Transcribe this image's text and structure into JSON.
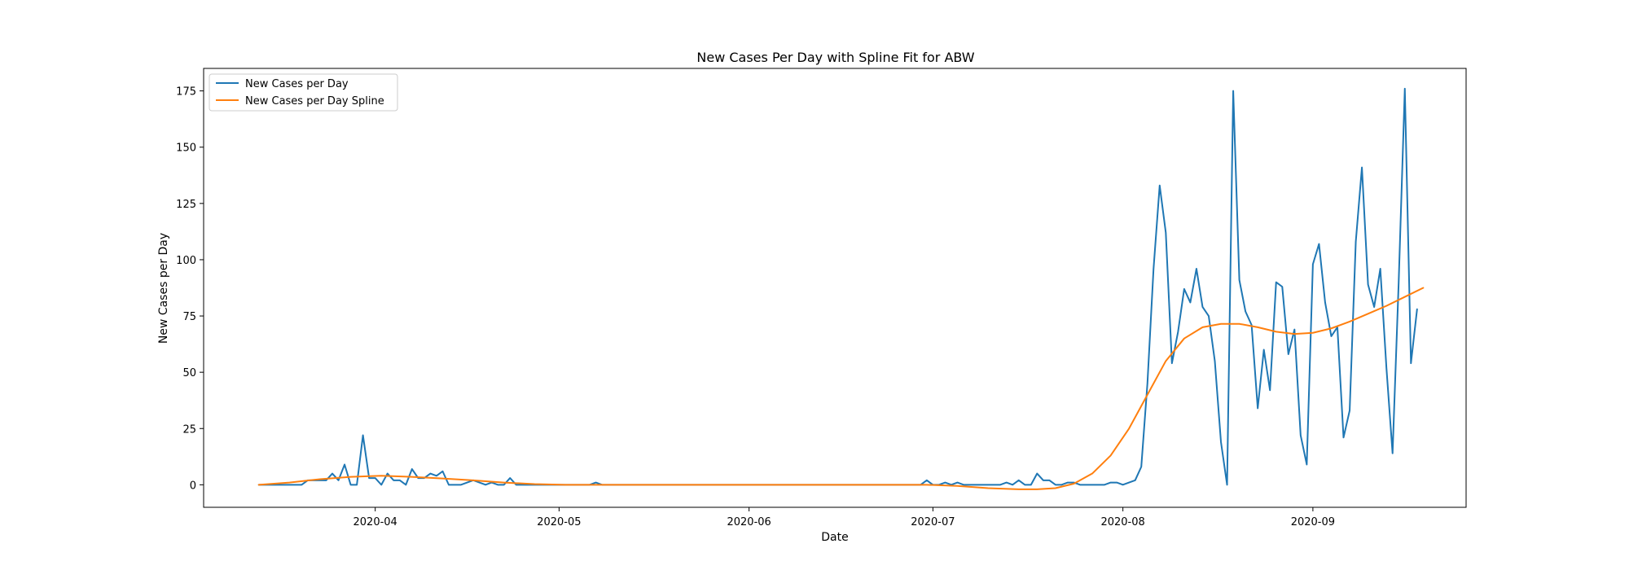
{
  "chart_data": {
    "type": "line",
    "title": "New Cases Per Day with Spline Fit for ABW",
    "xlabel": "Date",
    "ylabel": "New Cases per Day",
    "x_start": "2020-03-13",
    "x_end": "2020-09-19",
    "xlim": [
      "2020-03-04",
      "2020-09-26"
    ],
    "ylim": [
      -10,
      185
    ],
    "x_ticks": [
      {
        "date": "2020-04-01",
        "label": "2020-04"
      },
      {
        "date": "2020-05-01",
        "label": "2020-05"
      },
      {
        "date": "2020-06-01",
        "label": "2020-06"
      },
      {
        "date": "2020-07-01",
        "label": "2020-07"
      },
      {
        "date": "2020-08-01",
        "label": "2020-08"
      },
      {
        "date": "2020-09-01",
        "label": "2020-09"
      }
    ],
    "y_ticks": [
      0,
      25,
      50,
      75,
      100,
      125,
      150,
      175
    ],
    "grid": false,
    "legend_position": "top-left",
    "series": [
      {
        "name": "New Cases per Day",
        "color": "#1f77b4",
        "points": [
          [
            "2020-03-13",
            0
          ],
          [
            "2020-03-14",
            0
          ],
          [
            "2020-03-15",
            0
          ],
          [
            "2020-03-16",
            0
          ],
          [
            "2020-03-17",
            0
          ],
          [
            "2020-03-18",
            0
          ],
          [
            "2020-03-19",
            0
          ],
          [
            "2020-03-20",
            0
          ],
          [
            "2020-03-21",
            2
          ],
          [
            "2020-03-22",
            2
          ],
          [
            "2020-03-23",
            2
          ],
          [
            "2020-03-24",
            2
          ],
          [
            "2020-03-25",
            5
          ],
          [
            "2020-03-26",
            2
          ],
          [
            "2020-03-27",
            9
          ],
          [
            "2020-03-28",
            0
          ],
          [
            "2020-03-29",
            0
          ],
          [
            "2020-03-30",
            22
          ],
          [
            "2020-03-31",
            3
          ],
          [
            "2020-04-01",
            3
          ],
          [
            "2020-04-02",
            0
          ],
          [
            "2020-04-03",
            5
          ],
          [
            "2020-04-04",
            2
          ],
          [
            "2020-04-05",
            2
          ],
          [
            "2020-04-06",
            0
          ],
          [
            "2020-04-07",
            7
          ],
          [
            "2020-04-08",
            3
          ],
          [
            "2020-04-09",
            3
          ],
          [
            "2020-04-10",
            5
          ],
          [
            "2020-04-11",
            4
          ],
          [
            "2020-04-12",
            6
          ],
          [
            "2020-04-13",
            0
          ],
          [
            "2020-04-14",
            0
          ],
          [
            "2020-04-15",
            0
          ],
          [
            "2020-04-16",
            1
          ],
          [
            "2020-04-17",
            2
          ],
          [
            "2020-04-18",
            1
          ],
          [
            "2020-04-19",
            0
          ],
          [
            "2020-04-20",
            1
          ],
          [
            "2020-04-21",
            0
          ],
          [
            "2020-04-22",
            0
          ],
          [
            "2020-04-23",
            3
          ],
          [
            "2020-04-24",
            0
          ],
          [
            "2020-04-25",
            0
          ],
          [
            "2020-05-06",
            0
          ],
          [
            "2020-05-07",
            1
          ],
          [
            "2020-05-08",
            0
          ],
          [
            "2020-06-29",
            0
          ],
          [
            "2020-06-30",
            2
          ],
          [
            "2020-07-01",
            0
          ],
          [
            "2020-07-02",
            0
          ],
          [
            "2020-07-03",
            1
          ],
          [
            "2020-07-04",
            0
          ],
          [
            "2020-07-05",
            1
          ],
          [
            "2020-07-06",
            0
          ],
          [
            "2020-07-12",
            0
          ],
          [
            "2020-07-13",
            1
          ],
          [
            "2020-07-14",
            0
          ],
          [
            "2020-07-15",
            2
          ],
          [
            "2020-07-16",
            0
          ],
          [
            "2020-07-17",
            0
          ],
          [
            "2020-07-18",
            5
          ],
          [
            "2020-07-19",
            2
          ],
          [
            "2020-07-20",
            2
          ],
          [
            "2020-07-21",
            0
          ],
          [
            "2020-07-22",
            0
          ],
          [
            "2020-07-23",
            1
          ],
          [
            "2020-07-24",
            1
          ],
          [
            "2020-07-25",
            0
          ],
          [
            "2020-07-26",
            0
          ],
          [
            "2020-07-27",
            0
          ],
          [
            "2020-07-28",
            0
          ],
          [
            "2020-07-29",
            0
          ],
          [
            "2020-07-30",
            1
          ],
          [
            "2020-07-31",
            1
          ],
          [
            "2020-08-01",
            0
          ],
          [
            "2020-08-02",
            1
          ],
          [
            "2020-08-03",
            2
          ],
          [
            "2020-08-04",
            8
          ],
          [
            "2020-08-05",
            45
          ],
          [
            "2020-08-06",
            96
          ],
          [
            "2020-08-07",
            133
          ],
          [
            "2020-08-08",
            112
          ],
          [
            "2020-08-09",
            54
          ],
          [
            "2020-08-10",
            68
          ],
          [
            "2020-08-11",
            87
          ],
          [
            "2020-08-12",
            81
          ],
          [
            "2020-08-13",
            96
          ],
          [
            "2020-08-14",
            79
          ],
          [
            "2020-08-15",
            75
          ],
          [
            "2020-08-16",
            55
          ],
          [
            "2020-08-17",
            19
          ],
          [
            "2020-08-18",
            0
          ],
          [
            "2020-08-19",
            175
          ],
          [
            "2020-08-20",
            91
          ],
          [
            "2020-08-21",
            77
          ],
          [
            "2020-08-22",
            71
          ],
          [
            "2020-08-23",
            34
          ],
          [
            "2020-08-24",
            60
          ],
          [
            "2020-08-25",
            42
          ],
          [
            "2020-08-26",
            90
          ],
          [
            "2020-08-27",
            88
          ],
          [
            "2020-08-28",
            58
          ],
          [
            "2020-08-29",
            69
          ],
          [
            "2020-08-30",
            22
          ],
          [
            "2020-08-31",
            9
          ],
          [
            "2020-09-01",
            98
          ],
          [
            "2020-09-02",
            107
          ],
          [
            "2020-09-03",
            81
          ],
          [
            "2020-09-04",
            66
          ],
          [
            "2020-09-05",
            70
          ],
          [
            "2020-09-06",
            21
          ],
          [
            "2020-09-07",
            33
          ],
          [
            "2020-09-08",
            108
          ],
          [
            "2020-09-09",
            141
          ],
          [
            "2020-09-10",
            89
          ],
          [
            "2020-09-11",
            79
          ],
          [
            "2020-09-12",
            96
          ],
          [
            "2020-09-13",
            52
          ],
          [
            "2020-09-14",
            14
          ],
          [
            "2020-09-15",
            90
          ],
          [
            "2020-09-16",
            176
          ],
          [
            "2020-09-17",
            54
          ],
          [
            "2020-09-18",
            78
          ]
        ]
      },
      {
        "name": "New Cases per Day Spline",
        "color": "#ff7f0e",
        "points": [
          [
            "2020-03-13",
            0
          ],
          [
            "2020-03-18",
            1
          ],
          [
            "2020-03-23",
            2.5
          ],
          [
            "2020-03-28",
            3.5
          ],
          [
            "2020-04-02",
            4
          ],
          [
            "2020-04-07",
            3.5
          ],
          [
            "2020-04-12",
            2.8
          ],
          [
            "2020-04-17",
            2
          ],
          [
            "2020-04-22",
            1
          ],
          [
            "2020-04-27",
            0.3
          ],
          [
            "2020-05-02",
            0
          ],
          [
            "2020-05-15",
            0
          ],
          [
            "2020-06-01",
            0
          ],
          [
            "2020-06-15",
            0
          ],
          [
            "2020-06-30",
            0
          ],
          [
            "2020-07-05",
            -0.5
          ],
          [
            "2020-07-10",
            -1.5
          ],
          [
            "2020-07-15",
            -2
          ],
          [
            "2020-07-18",
            -2
          ],
          [
            "2020-07-21",
            -1.5
          ],
          [
            "2020-07-24",
            0.5
          ],
          [
            "2020-07-27",
            5
          ],
          [
            "2020-07-30",
            13
          ],
          [
            "2020-08-02",
            25
          ],
          [
            "2020-08-05",
            40
          ],
          [
            "2020-08-08",
            55
          ],
          [
            "2020-08-11",
            65
          ],
          [
            "2020-08-14",
            70
          ],
          [
            "2020-08-17",
            71.5
          ],
          [
            "2020-08-20",
            71.5
          ],
          [
            "2020-08-23",
            70
          ],
          [
            "2020-08-26",
            68
          ],
          [
            "2020-08-29",
            67
          ],
          [
            "2020-09-01",
            67.5
          ],
          [
            "2020-09-04",
            69.5
          ],
          [
            "2020-09-07",
            72.5
          ],
          [
            "2020-09-10",
            76
          ],
          [
            "2020-09-13",
            79.5
          ],
          [
            "2020-09-16",
            83.5
          ],
          [
            "2020-09-19",
            87.5
          ]
        ]
      }
    ]
  }
}
